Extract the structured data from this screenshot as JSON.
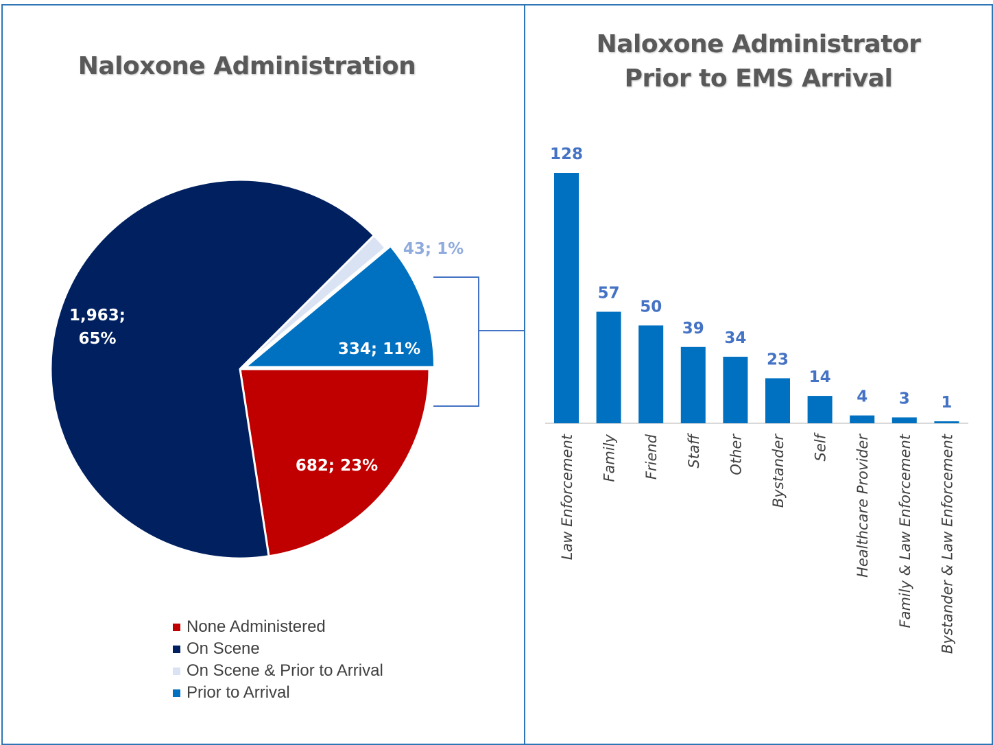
{
  "chart_data": [
    {
      "type": "pie",
      "title": "Naloxone Administration",
      "slices": [
        {
          "name": "None Administered",
          "value": 682,
          "label": "682; 23%",
          "color": "#c00000",
          "label_color": "#ffffff"
        },
        {
          "name": "On Scene",
          "value": 1963,
          "label": "1,963;\n65%",
          "color": "#002060",
          "label_color": "#ffffff"
        },
        {
          "name": "On Scene & Prior to Arrival",
          "value": 43,
          "label": "43; 1%",
          "color": "#dae3f3",
          "label_color": "#8faadc"
        },
        {
          "name": "Prior to Arrival",
          "value": 334,
          "label": "334; 11%",
          "color": "#0070c0",
          "label_color": "#ffffff"
        }
      ],
      "legend": [
        "None Administered",
        "On Scene",
        "On Scene & Prior to Arrival",
        "Prior to Arrival"
      ],
      "legend_position": "bottom"
    },
    {
      "type": "bar",
      "title": "Naloxone Administrator\nPrior to EMS Arrival",
      "categories": [
        "Law Enforcement",
        "Family",
        "Friend",
        "Staff",
        "Other",
        "Bystander",
        "Self",
        "Healthcare Provider",
        "Family & Law Enforcement",
        "Bystander & Law Enforcement"
      ],
      "values": [
        128,
        57,
        50,
        39,
        34,
        23,
        14,
        4,
        3,
        1
      ],
      "bar_color": "#0070c0",
      "label_color": "#4472c4",
      "xlabel": "",
      "ylabel": "",
      "ylim": [
        0,
        130
      ],
      "grid": false
    }
  ]
}
